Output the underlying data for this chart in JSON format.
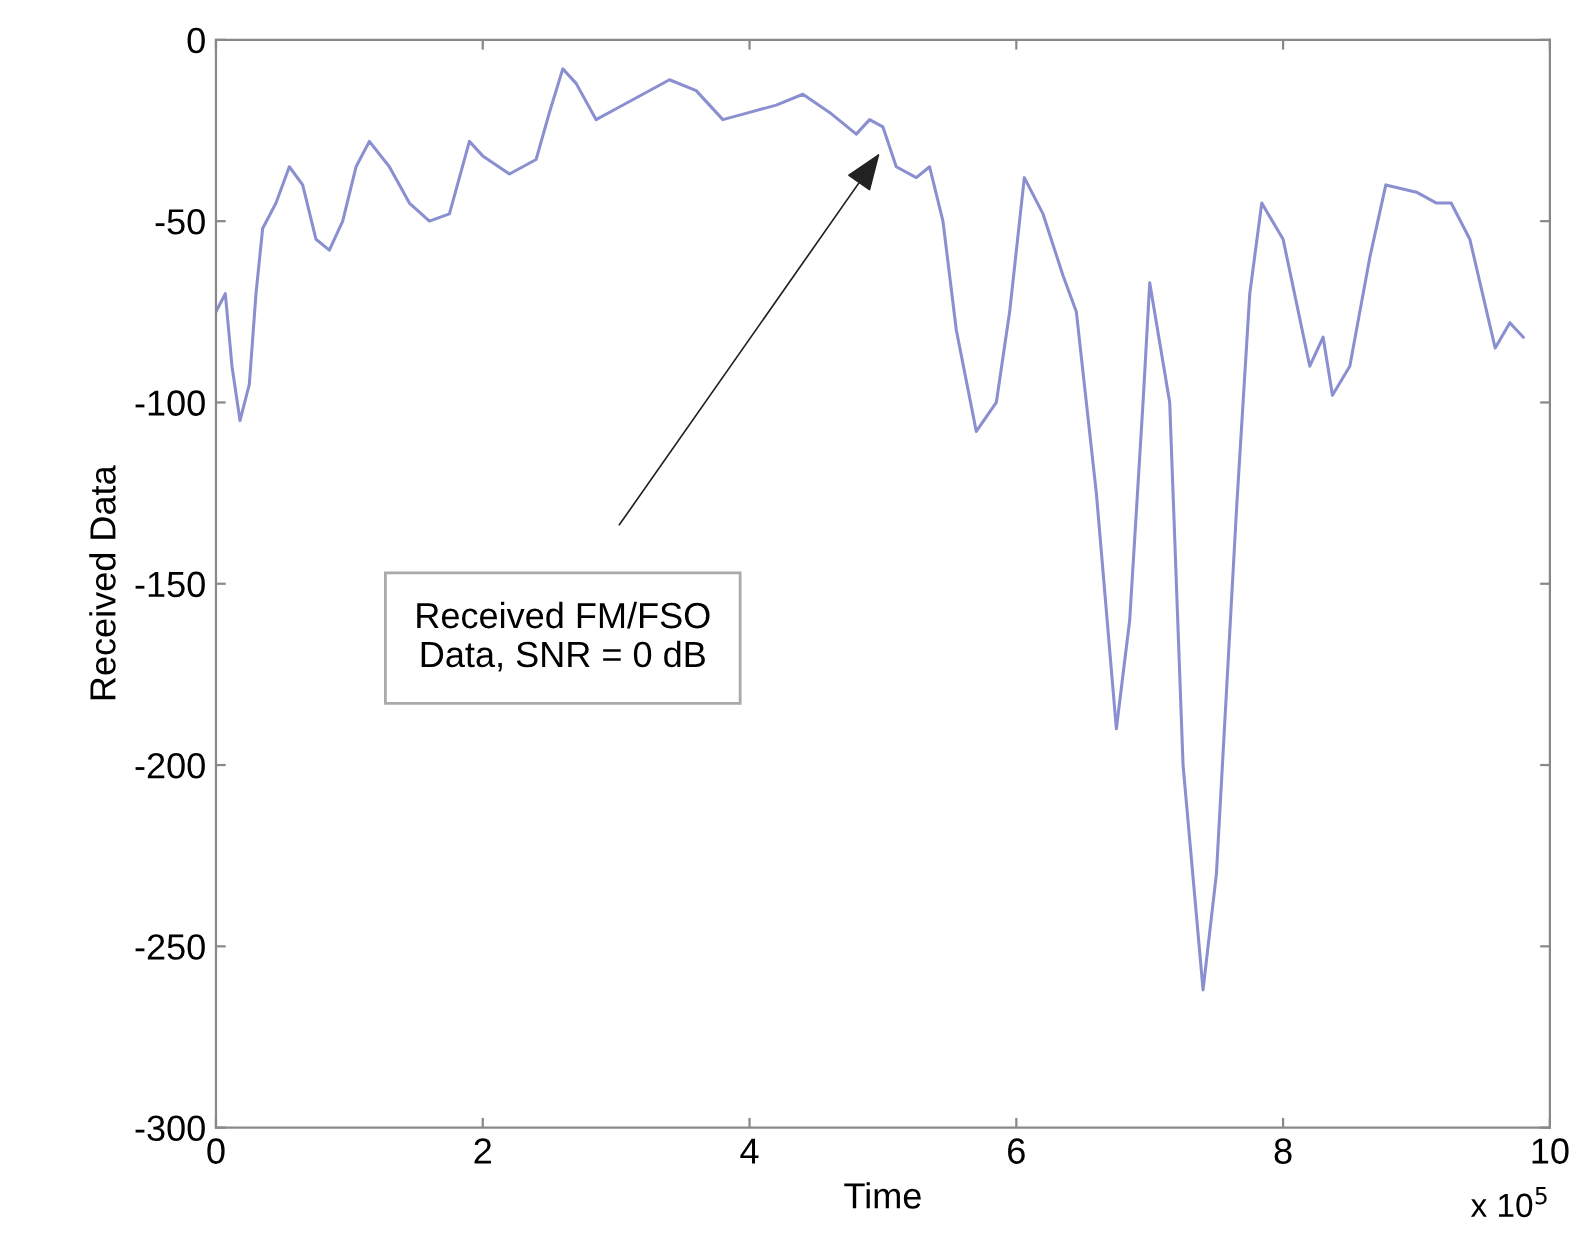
{
  "chart_data": {
    "type": "line",
    "xlabel": "Time",
    "ylabel": "Received Data",
    "xlim": [
      0,
      10
    ],
    "ylim": [
      -300,
      0
    ],
    "xticks": [
      0,
      2,
      4,
      6,
      8,
      10
    ],
    "yticks": [
      -300,
      -250,
      -200,
      -150,
      -100,
      -50,
      0
    ],
    "series": [
      {
        "color": "#8a8fd0",
        "x": [
          0.0,
          0.07,
          0.12,
          0.18,
          0.25,
          0.3,
          0.35,
          0.45,
          0.55,
          0.65,
          0.75,
          0.85,
          0.95,
          1.05,
          1.15,
          1.3,
          1.45,
          1.6,
          1.75,
          1.9,
          2.0,
          2.2,
          2.4,
          2.5,
          2.6,
          2.7,
          2.85,
          3.0,
          3.2,
          3.4,
          3.6,
          3.8,
          4.0,
          4.2,
          4.4,
          4.6,
          4.8,
          4.9,
          5.0,
          5.1,
          5.25,
          5.35,
          5.45,
          5.55,
          5.7,
          5.85,
          5.95,
          6.06,
          6.2,
          6.35,
          6.45,
          6.6,
          6.75,
          6.85,
          6.95,
          7.0,
          7.15,
          7.25,
          7.4,
          7.5,
          7.65,
          7.75,
          7.84,
          8.0,
          8.2,
          8.3,
          8.37,
          8.5,
          8.65,
          8.77,
          9.0,
          9.15,
          9.26,
          9.4,
          9.59,
          9.7,
          9.8
        ],
        "values": [
          -75,
          -70,
          -90,
          -105,
          -95,
          -70,
          -52,
          -45,
          -35,
          -40,
          -55,
          -58,
          -50,
          -35,
          -28,
          -35,
          -45,
          -50,
          -48,
          -28,
          -32,
          -37,
          -33,
          -20,
          -8,
          -12,
          -22,
          -19,
          -15,
          -11,
          -14,
          -22,
          -20,
          -18,
          -15,
          -20,
          -26,
          -22,
          -24,
          -35,
          -38,
          -35,
          -50,
          -80,
          -108,
          -100,
          -75,
          -38,
          -48,
          -65,
          -75,
          -125,
          -190,
          -160,
          -100,
          -67,
          -100,
          -200,
          -262,
          -230,
          -130,
          -70,
          -45,
          -55,
          -90,
          -82,
          -98,
          -90,
          -60,
          -40,
          -42,
          -45,
          -45,
          -55,
          -85,
          -78,
          -82
        ]
      }
    ],
    "annotations": [
      "Received FM/FSO\nData, SNR = 0 dB",
      "x 10$^{5}$"
    ],
    "grid": false,
    "legend": false,
    "line_style": "solid",
    "marker": "none"
  }
}
